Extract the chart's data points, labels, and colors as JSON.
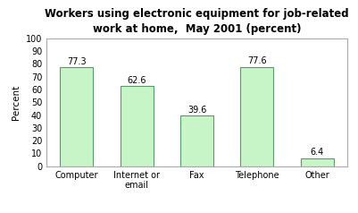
{
  "title": "Workers using electronic equipment for job-related\nwork at home,  May 2001 (percent)",
  "categories": [
    "Computer",
    "Internet or\nemail",
    "Fax",
    "Telephone",
    "Other"
  ],
  "values": [
    77.3,
    62.6,
    39.6,
    77.6,
    6.4
  ],
  "bar_color": "#c8f5c8",
  "bar_edge_color": "#5a9a6a",
  "ylabel": "Percent",
  "ylim": [
    0,
    100
  ],
  "yticks": [
    0,
    10,
    20,
    30,
    40,
    50,
    60,
    70,
    80,
    90,
    100
  ],
  "title_fontsize": 8.5,
  "label_fontsize": 7.5,
  "tick_fontsize": 7,
  "value_fontsize": 7,
  "background_color": "#ffffff",
  "border_color": "#aaaaaa"
}
